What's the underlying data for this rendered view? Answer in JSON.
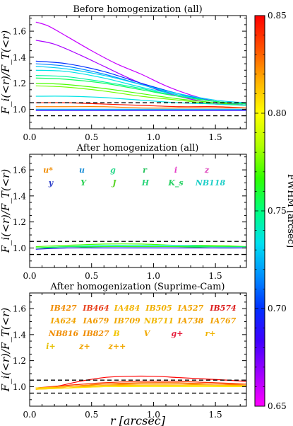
{
  "chart_data": [
    {
      "type": "line",
      "title": "Before homogenization (all)",
      "xlabel": "",
      "ylabel": "F_i(<r)/F_T(<r)",
      "xlim": [
        0,
        1.75
      ],
      "ylim": [
        0.85,
        1.72
      ],
      "x_ticks": [
        "0.0",
        "0.5",
        "1.0",
        "1.5"
      ],
      "y_ticks": [
        "1.0",
        "1.2",
        "1.4",
        "1.6"
      ],
      "reference_lines": [
        0.95,
        1.05
      ],
      "series": [
        {
          "fwhm": 0.66,
          "x": [
            0.05,
            0.15,
            0.3,
            0.5,
            0.7,
            0.9,
            1.1,
            1.3,
            1.5,
            1.75
          ],
          "y": [
            1.67,
            1.64,
            1.56,
            1.45,
            1.35,
            1.27,
            1.18,
            1.11,
            1.06,
            1.03
          ]
        },
        {
          "fwhm": 0.665,
          "x": [
            0.05,
            0.2,
            0.4,
            0.6,
            0.8,
            1.0,
            1.2,
            1.4,
            1.6,
            1.75
          ],
          "y": [
            1.53,
            1.5,
            1.42,
            1.33,
            1.24,
            1.16,
            1.1,
            1.06,
            1.04,
            1.03
          ]
        },
        {
          "fwhm": 0.7,
          "x": [
            0.05,
            0.3,
            0.6,
            0.9,
            1.2,
            1.5,
            1.75
          ],
          "y": [
            1.37,
            1.35,
            1.29,
            1.2,
            1.12,
            1.06,
            1.04
          ]
        },
        {
          "fwhm": 0.715,
          "x": [
            0.05,
            0.3,
            0.6,
            0.9,
            1.2,
            1.5,
            1.75
          ],
          "y": [
            1.35,
            1.33,
            1.27,
            1.19,
            1.11,
            1.06,
            1.04
          ]
        },
        {
          "fwhm": 0.73,
          "x": [
            0.05,
            0.3,
            0.6,
            0.9,
            1.2,
            1.5,
            1.75
          ],
          "y": [
            1.33,
            1.31,
            1.26,
            1.19,
            1.12,
            1.07,
            1.05
          ]
        },
        {
          "fwhm": 0.735,
          "x": [
            0.05,
            0.3,
            0.6,
            0.9,
            1.2,
            1.5,
            1.75
          ],
          "y": [
            1.3,
            1.29,
            1.24,
            1.17,
            1.11,
            1.06,
            1.04
          ]
        },
        {
          "fwhm": 0.745,
          "x": [
            0.05,
            0.3,
            0.6,
            0.9,
            1.2,
            1.5,
            1.75
          ],
          "y": [
            1.26,
            1.25,
            1.21,
            1.16,
            1.1,
            1.06,
            1.04
          ]
        },
        {
          "fwhm": 0.755,
          "x": [
            0.05,
            0.3,
            0.6,
            0.9,
            1.2,
            1.5,
            1.75
          ],
          "y": [
            1.24,
            1.23,
            1.2,
            1.15,
            1.1,
            1.06,
            1.04
          ]
        },
        {
          "fwhm": 0.77,
          "x": [
            0.05,
            0.3,
            0.6,
            0.9,
            1.2,
            1.5,
            1.75
          ],
          "y": [
            1.2,
            1.19,
            1.16,
            1.12,
            1.08,
            1.05,
            1.03
          ]
        },
        {
          "fwhm": 0.775,
          "x": [
            0.05,
            0.3,
            0.6,
            0.9,
            1.2,
            1.5,
            1.75
          ],
          "y": [
            1.18,
            1.17,
            1.14,
            1.1,
            1.07,
            1.04,
            1.03
          ]
        },
        {
          "fwhm": 0.735,
          "x": [
            0.05,
            0.3,
            0.6,
            0.9,
            1.2,
            1.5,
            1.75
          ],
          "y": [
            1.1,
            1.1,
            1.09,
            1.07,
            1.05,
            1.04,
            1.03
          ]
        },
        {
          "fwhm": 0.845,
          "x": [
            0.05,
            0.3,
            0.6,
            0.9,
            1.2,
            1.5,
            1.75
          ],
          "y": [
            1.05,
            1.05,
            1.04,
            1.03,
            1.02,
            1.02,
            1.01
          ]
        },
        {
          "fwhm": 0.825,
          "x": [
            0.05,
            0.3,
            0.6,
            0.9,
            1.2,
            1.5,
            1.75
          ],
          "y": [
            1.02,
            1.02,
            1.02,
            1.01,
            1.01,
            1.01,
            1.01
          ]
        },
        {
          "fwhm": 0.69,
          "x": [
            0.05,
            0.3,
            0.6,
            0.9,
            1.2,
            1.5,
            1.75
          ],
          "y": [
            0.99,
            0.99,
            0.99,
            0.99,
            0.99,
            0.99,
            0.99
          ]
        },
        {
          "fwhm": 0.72,
          "x": [
            0.05,
            0.3,
            0.6,
            0.9,
            1.2,
            1.5,
            1.75
          ],
          "y": [
            1.0,
            1.0,
            1.0,
            1.0,
            1.0,
            1.0,
            1.0
          ]
        }
      ]
    },
    {
      "type": "line",
      "title": "After homogenization (all)",
      "xlabel": "",
      "ylabel": "F_i(<r)/F_T(<r)",
      "xlim": [
        0,
        1.75
      ],
      "ylim": [
        0.85,
        1.72
      ],
      "x_ticks": [
        "0.0",
        "0.5",
        "1.0",
        "1.5"
      ],
      "y_ticks": [
        "1.0",
        "1.2",
        "1.4",
        "1.6"
      ],
      "reference_lines": [
        0.95,
        1.05
      ],
      "legend": [
        {
          "label": "u*",
          "color": "#f08c00"
        },
        {
          "label": "u",
          "color": "#1e90d8"
        },
        {
          "label": "g",
          "color": "#2bd88c"
        },
        {
          "label": "r",
          "color": "#22c25a"
        },
        {
          "label": "i",
          "color": "#e640c8"
        },
        {
          "label": "z",
          "color": "#e050c0"
        },
        {
          "label": "y",
          "color": "#2a3cc8"
        },
        {
          "label": "Y",
          "color": "#28d050"
        },
        {
          "label": "J",
          "color": "#5ad428"
        },
        {
          "label": "H",
          "color": "#2ad47a"
        },
        {
          "label": "K_s",
          "color": "#22d060"
        },
        {
          "label": "NB118",
          "color": "#20cfc8"
        }
      ],
      "series": [
        {
          "fwhm": 0.77,
          "x": [
            0.05,
            0.3,
            0.6,
            0.9,
            1.2,
            1.5,
            1.75
          ],
          "y": [
            1.01,
            1.02,
            1.03,
            1.03,
            1.02,
            1.02,
            1.01
          ]
        },
        {
          "fwhm": 0.74,
          "x": [
            0.05,
            0.3,
            0.6,
            0.9,
            1.2,
            1.5,
            1.75
          ],
          "y": [
            1.0,
            1.01,
            1.02,
            1.02,
            1.02,
            1.01,
            1.01
          ]
        },
        {
          "fwhm": 0.755,
          "x": [
            0.05,
            0.3,
            0.6,
            0.9,
            1.2,
            1.5,
            1.75
          ],
          "y": [
            1.0,
            1.01,
            1.01,
            1.01,
            1.01,
            1.01,
            1.01
          ]
        },
        {
          "fwhm": 0.765,
          "x": [
            0.05,
            0.3,
            0.6,
            0.9,
            1.2,
            1.5,
            1.75
          ],
          "y": [
            1.0,
            1.0,
            1.01,
            1.01,
            1.01,
            1.0,
            1.0
          ]
        },
        {
          "fwhm": 0.69,
          "x": [
            0.05,
            0.3,
            0.6,
            0.9,
            1.2,
            1.5,
            1.75
          ],
          "y": [
            0.99,
            1.0,
            1.0,
            1.0,
            1.0,
            1.0,
            1.0
          ]
        }
      ]
    },
    {
      "type": "line",
      "title": "After homogenization (Suprime-Cam)",
      "xlabel": "r [arcsec]",
      "ylabel": "F_i(<r)/F_T(<r)",
      "xlim": [
        0,
        1.75
      ],
      "ylim": [
        0.85,
        1.72
      ],
      "x_ticks": [
        "0.0",
        "0.5",
        "1.0",
        "1.5"
      ],
      "y_ticks": [
        "1.0",
        "1.2",
        "1.4",
        "1.6"
      ],
      "reference_lines": [
        0.95,
        1.05
      ],
      "legend": [
        {
          "label": "IB427",
          "color": "#f08c00"
        },
        {
          "label": "IB464",
          "color": "#e8401c"
        },
        {
          "label": "IA484",
          "color": "#f2b400"
        },
        {
          "label": "IB505",
          "color": "#f0b000"
        },
        {
          "label": "IA527",
          "color": "#f0a400"
        },
        {
          "label": "IB574",
          "color": "#dc1e1e"
        },
        {
          "label": "IA624",
          "color": "#f0a400"
        },
        {
          "label": "IA679",
          "color": "#f09a00"
        },
        {
          "label": "IB709",
          "color": "#f0a800"
        },
        {
          "label": "NB711",
          "color": "#f0b800"
        },
        {
          "label": "IA738",
          "color": "#f0a000"
        },
        {
          "label": "IA767",
          "color": "#f0a000"
        },
        {
          "label": "NB816",
          "color": "#f08c00"
        },
        {
          "label": "IB827",
          "color": "#f08c00"
        },
        {
          "label": "B",
          "color": "#f2c400"
        },
        {
          "label": "V",
          "color": "#f0a800"
        },
        {
          "label": "g+",
          "color": "#e61e3c"
        },
        {
          "label": "r+",
          "color": "#f0b400"
        },
        {
          "label": "i+",
          "color": "#e6c000"
        },
        {
          "label": "z+",
          "color": "#f0a400"
        },
        {
          "label": "z++",
          "color": "#f0a800"
        }
      ],
      "series": [
        {
          "fwhm": 0.85,
          "x": [
            0.05,
            0.2,
            0.4,
            0.6,
            0.8,
            1.0,
            1.2,
            1.4,
            1.6,
            1.75
          ],
          "y": [
            0.99,
            1.0,
            1.04,
            1.07,
            1.08,
            1.08,
            1.07,
            1.06,
            1.05,
            1.04
          ]
        },
        {
          "fwhm": 0.84,
          "x": [
            0.05,
            0.3,
            0.6,
            0.9,
            1.2,
            1.5,
            1.75
          ],
          "y": [
            0.99,
            1.01,
            1.03,
            1.04,
            1.04,
            1.03,
            1.02
          ]
        },
        {
          "fwhm": 0.83,
          "x": [
            0.05,
            0.3,
            0.6,
            0.9,
            1.2,
            1.5,
            1.75
          ],
          "y": [
            0.98,
            1.0,
            1.02,
            1.03,
            1.03,
            1.02,
            1.02
          ]
        },
        {
          "fwhm": 0.825,
          "x": [
            0.05,
            0.3,
            0.6,
            0.9,
            1.2,
            1.5,
            1.75
          ],
          "y": [
            0.99,
            1.0,
            1.02,
            1.02,
            1.02,
            1.02,
            1.01
          ]
        },
        {
          "fwhm": 0.82,
          "x": [
            0.05,
            0.3,
            0.6,
            0.9,
            1.2,
            1.5,
            1.75
          ],
          "y": [
            0.98,
            0.99,
            1.01,
            1.02,
            1.02,
            1.01,
            1.01
          ]
        },
        {
          "fwhm": 0.815,
          "x": [
            0.05,
            0.3,
            0.6,
            0.9,
            1.2,
            1.5,
            1.75
          ],
          "y": [
            0.99,
            1.0,
            1.01,
            1.01,
            1.01,
            1.01,
            1.01
          ]
        },
        {
          "fwhm": 0.81,
          "x": [
            0.05,
            0.3,
            0.6,
            0.9,
            1.2,
            1.5,
            1.75
          ],
          "y": [
            0.98,
            0.99,
            1.0,
            1.01,
            1.01,
            1.01,
            1.0
          ]
        },
        {
          "fwhm": 0.805,
          "x": [
            0.05,
            0.3,
            0.6,
            0.9,
            1.2,
            1.5,
            1.75
          ],
          "y": [
            0.99,
            0.99,
            1.0,
            1.0,
            1.0,
            1.0,
            1.0
          ]
        }
      ]
    }
  ],
  "colorbar": {
    "label": "FWHM [arcsec]",
    "min": 0.65,
    "max": 0.85,
    "ticks": [
      "0.65",
      "0.70",
      "0.75",
      "0.80",
      "0.85"
    ],
    "tick_values": [
      0.65,
      0.7,
      0.75,
      0.8,
      0.85
    ],
    "colormap": [
      "#ff00ff",
      "#a000ff",
      "#4000ff",
      "#0030ff",
      "#0090ff",
      "#00e0f0",
      "#00ff80",
      "#30ff00",
      "#b0ff00",
      "#ffff00",
      "#ffb000",
      "#ff5000",
      "#ff0000"
    ]
  }
}
